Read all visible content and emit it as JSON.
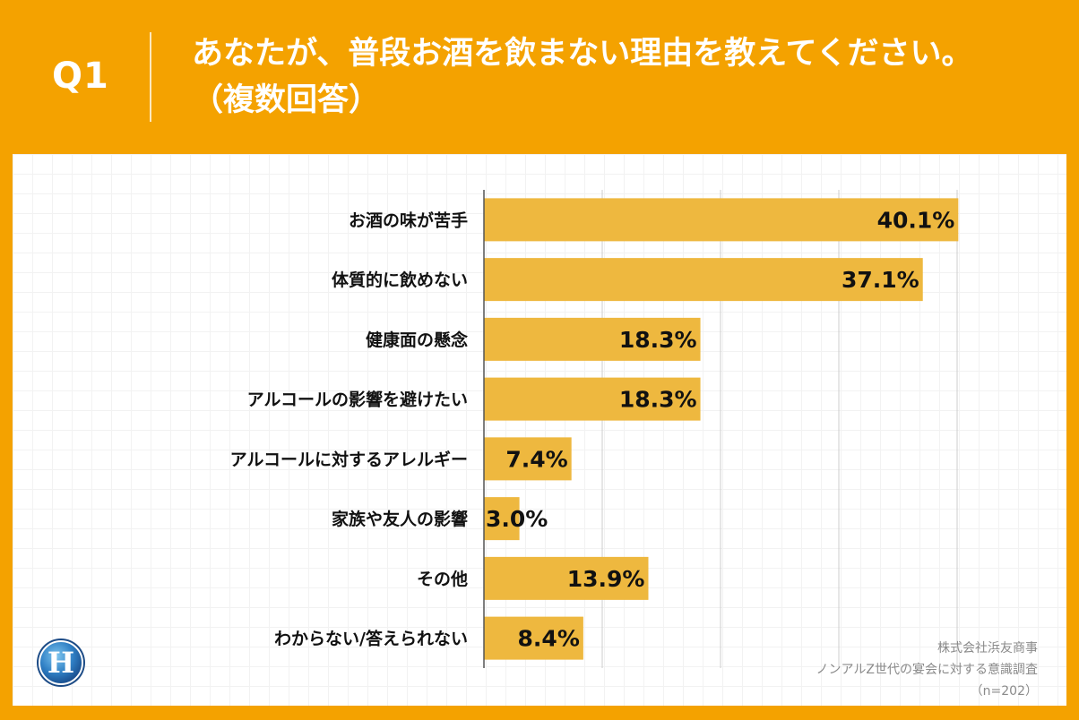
{
  "header": {
    "question_number": "Q1",
    "title_line1": "あなたが、普段お酒を飲まない理由を教えてください。",
    "title_line2": "（複数回答）"
  },
  "chart_data": {
    "type": "bar",
    "orientation": "horizontal",
    "categories": [
      "お酒の味が苦手",
      "体質的に飲めない",
      "健康面の懸念",
      "アルコールの影響を避けたい",
      "アルコールに対するアレルギー",
      "家族や友人の影響",
      "その他",
      "わからない/答えられない"
    ],
    "values": [
      40.1,
      37.1,
      18.3,
      18.3,
      7.4,
      3.0,
      13.9,
      8.4
    ],
    "value_labels": [
      "40.1%",
      "37.1%",
      "18.3%",
      "18.3%",
      "7.4%",
      "3.0%",
      "13.9%",
      "8.4%"
    ],
    "xlim": [
      0,
      50
    ],
    "grid": true,
    "bar_color": "#eeb83f"
  },
  "source": {
    "company": "株式会社浜友商事",
    "survey": "ノンアルZ世代の宴会に対する意識調査",
    "sample": "（n=202）"
  },
  "colors": {
    "background": "#f4a200",
    "panel": "#ffffff",
    "bar": "#eeb83f"
  },
  "logo": {
    "letter": "H"
  }
}
